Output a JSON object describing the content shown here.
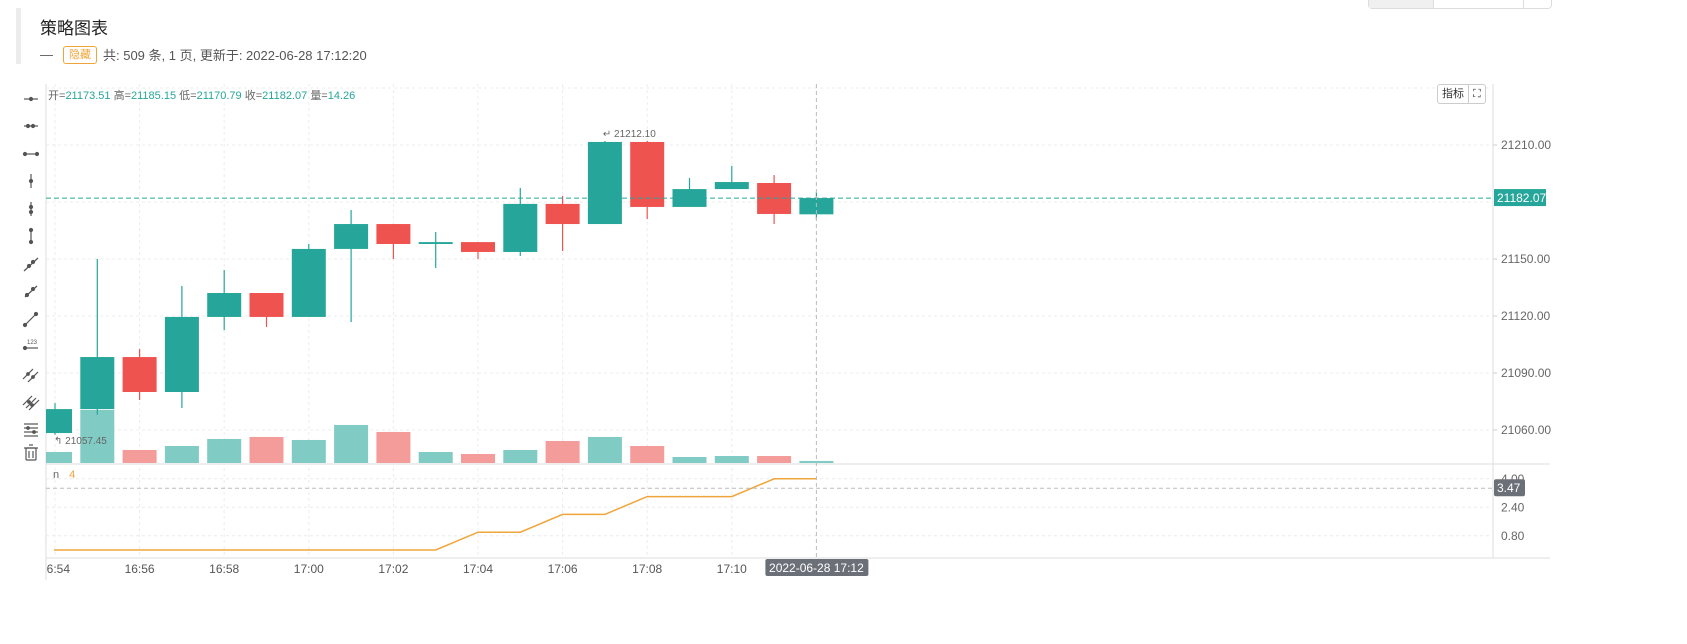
{
  "header": {
    "title": "策略图表",
    "collapse_symbol": "—",
    "hide_button": "隐藏",
    "summary": "共: 509 条, 1 页, 更新于: 2022-06-28 17:12:20"
  },
  "legend": {
    "open_label": "开=",
    "open": "21173.51",
    "high_label": "高=",
    "high": "21185.15",
    "low_label": "低=",
    "low": "21170.79",
    "close_label": "收=",
    "close": "21182.07",
    "volume_label": "量=",
    "volume": "14.26"
  },
  "indicator_legend": {
    "name": "n",
    "value": "4"
  },
  "buttons": {
    "indicators": "指标",
    "fullscreen_icon": "expand-icon"
  },
  "toolbar": [
    "horizontal-ray-icon",
    "horizontal-segment-icon",
    "horizontal-line-icon",
    "vertical-ray-icon",
    "vertical-segment-icon",
    "vertical-line-icon",
    "ray-icon",
    "segment-icon",
    "straight-line-icon",
    "price-line-icon",
    "parallel-line-icon",
    "price-channel-icon",
    "fibonacci-icon",
    "trash-icon"
  ],
  "colors": {
    "up": "#26a69a",
    "down": "#ef5350",
    "up_vol": "#80cbc4",
    "down_vol": "#f49c9a",
    "indicator": "#f0a53a",
    "grid": "#ececec"
  },
  "chart_data": [
    {
      "type": "candlestick",
      "title": "",
      "x": [
        "16:54",
        "16:55",
        "16:56",
        "16:57",
        "16:58",
        "16:59",
        "17:00",
        "17:01",
        "17:02",
        "17:03",
        "17:04",
        "17:05",
        "17:06",
        "17:07",
        "17:08",
        "17:09",
        "17:10",
        "17:11",
        "17:12"
      ],
      "open": [
        21058.4,
        21071.0,
        21098.4,
        21080.0,
        21119.5,
        21132.1,
        21119.5,
        21155.3,
        21168.4,
        21157.9,
        21158.9,
        21153.7,
        21179.0,
        21168.4,
        21211.6,
        21177.4,
        21186.8,
        21190.0,
        21173.51
      ],
      "high": [
        21074.2,
        21150.0,
        21102.6,
        21135.8,
        21144.2,
        21132.1,
        21157.9,
        21175.8,
        21168.4,
        21164.2,
        21158.9,
        21187.4,
        21183.2,
        21212.1,
        21212.1,
        21192.6,
        21199.0,
        21194.2,
        21185.15
      ],
      "low": [
        21057.45,
        21068.0,
        21075.8,
        21071.6,
        21112.6,
        21114.2,
        21119.5,
        21116.8,
        21150.0,
        21145.3,
        21150.0,
        21151.6,
        21154.2,
        21168.4,
        21171.0,
        21177.4,
        21186.8,
        21168.4,
        21170.79
      ],
      "close": [
        21071.0,
        21098.4,
        21080.0,
        21119.5,
        21132.1,
        21119.5,
        21155.3,
        21168.4,
        21157.9,
        21158.9,
        21153.7,
        21179.0,
        21168.4,
        21211.6,
        21177.4,
        21186.8,
        21190.5,
        21173.7,
        21182.07
      ],
      "volume": [
        77,
        371,
        91,
        119,
        168,
        182,
        161,
        266,
        217,
        77,
        63,
        91,
        154,
        182,
        119,
        42,
        49,
        49,
        14.26
      ],
      "ylim": [
        21045,
        21245
      ],
      "yticks": [
        "21210.00",
        "21150.00",
        "21120.00",
        "21090.00",
        "21060.00"
      ],
      "xticks": [
        "16:54",
        "16:56",
        "16:58",
        "17:00",
        "17:02",
        "17:04",
        "17:06",
        "17:08",
        "17:10"
      ],
      "last_price_label": "21182.07",
      "max_label": "21212.10",
      "min_label": "21057.45",
      "crosshair_time_label": "2022-06-28 17:12",
      "grid": true
    },
    {
      "type": "line",
      "name": "n",
      "x": [
        "16:54",
        "16:55",
        "16:56",
        "16:57",
        "16:58",
        "16:59",
        "17:00",
        "17:01",
        "17:02",
        "17:03",
        "17:04",
        "17:05",
        "17:06",
        "17:07",
        "17:08",
        "17:09",
        "17:10",
        "17:11",
        "17:12"
      ],
      "values": [
        0,
        0,
        0,
        0,
        0,
        0,
        0,
        0,
        0,
        0,
        1,
        1,
        2,
        2,
        3,
        3,
        3,
        4,
        4
      ],
      "ylim": [
        -0.2,
        4.3
      ],
      "yticks": [
        "4.00",
        "2.40",
        "0.80"
      ],
      "crosshair_value_label": "3.47"
    }
  ]
}
